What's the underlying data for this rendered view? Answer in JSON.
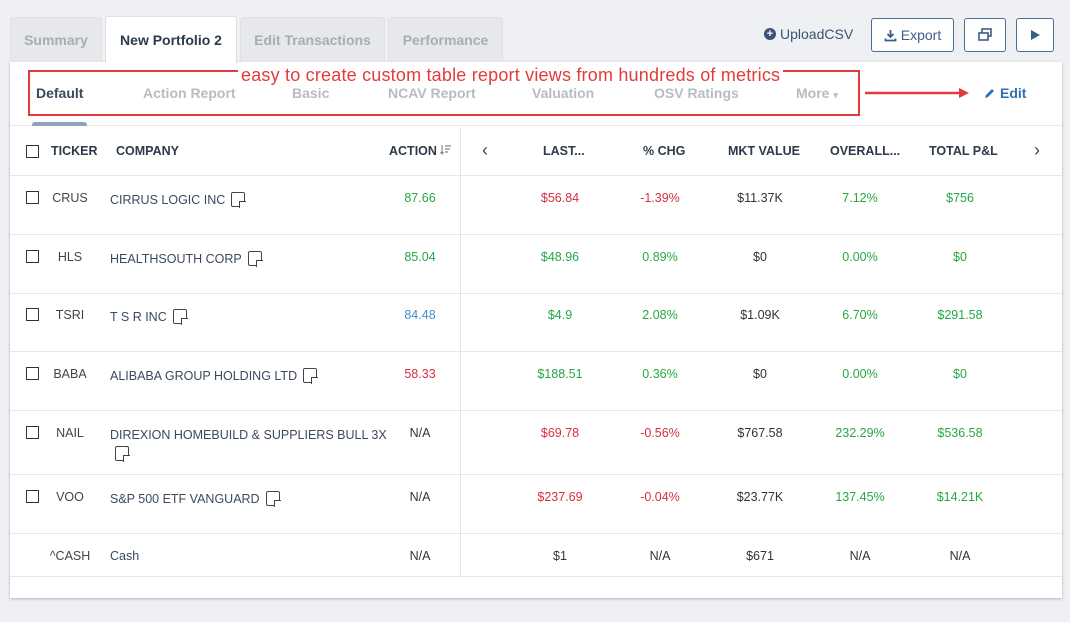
{
  "tabs": [
    "Summary",
    "New Portfolio 2",
    "Edit Transactions",
    "Performance"
  ],
  "actions": {
    "upload": "UploadCSV",
    "export": "Export"
  },
  "subtabs": [
    "Default",
    "Action Report",
    "Basic",
    "NCAV Report",
    "Valuation",
    "OSV Ratings",
    "More"
  ],
  "annotation": "easy to create custom table report views from hundreds of metrics",
  "edit_label": "Edit",
  "columns": {
    "ticker": "TICKER",
    "company": "COMPANY",
    "action": "ACTION",
    "last": "LAST...",
    "chg": "% CHG",
    "mkt": "MKT VALUE",
    "overall": "OVERALL...",
    "pl": "TOTAL P&L"
  },
  "rows": [
    {
      "ticker": "CRUS",
      "company": "CIRRUS LOGIC INC",
      "action": "87.66",
      "last": "$56.84",
      "chg": "-1.39%",
      "mkt": "$11.37K",
      "overall": "7.12%",
      "pl": "$756"
    },
    {
      "ticker": "HLS",
      "company": "HEALTHSOUTH CORP",
      "action": "85.04",
      "last": "$48.96",
      "chg": "0.89%",
      "mkt": "$0",
      "overall": "0.00%",
      "pl": "$0"
    },
    {
      "ticker": "TSRI",
      "company": "T S R INC",
      "action": "84.48",
      "last": "$4.9",
      "chg": "2.08%",
      "mkt": "$1.09K",
      "overall": "6.70%",
      "pl": "$291.58"
    },
    {
      "ticker": "BABA",
      "company": "ALIBABA GROUP HOLDING LTD",
      "action": "58.33",
      "last": "$188.51",
      "chg": "0.36%",
      "mkt": "$0",
      "overall": "0.00%",
      "pl": "$0"
    },
    {
      "ticker": "NAIL",
      "company": "DIREXION HOMEBUILD & SUPPLIERS BULL 3X",
      "action": "N/A",
      "last": "$69.78",
      "chg": "-0.56%",
      "mkt": "$767.58",
      "overall": "232.29%",
      "pl": "$536.58"
    },
    {
      "ticker": "VOO",
      "company": "S&P 500 ETF VANGUARD",
      "action": "N/A",
      "last": "$237.69",
      "chg": "-0.04%",
      "mkt": "$23.77K",
      "overall": "137.45%",
      "pl": "$14.21K"
    },
    {
      "ticker": "^CASH",
      "company": "Cash",
      "action": "N/A",
      "last": "$1",
      "chg": "N/A",
      "mkt": "$671",
      "overall": "N/A",
      "pl": "N/A"
    }
  ],
  "colors": {
    "positive": "#27a744",
    "negative": "#d6303f",
    "neutral_blue": "#3f8fd1",
    "annotation": "#e23b3b",
    "link": "#2f6fb4"
  },
  "icons": [
    "plus-circle-icon",
    "download-icon",
    "window-icon",
    "play-icon",
    "pencil-icon",
    "caret-down-icon",
    "sort-icon",
    "chevron-left-icon",
    "chevron-right-icon",
    "note-icon",
    "arrow-right-icon"
  ]
}
